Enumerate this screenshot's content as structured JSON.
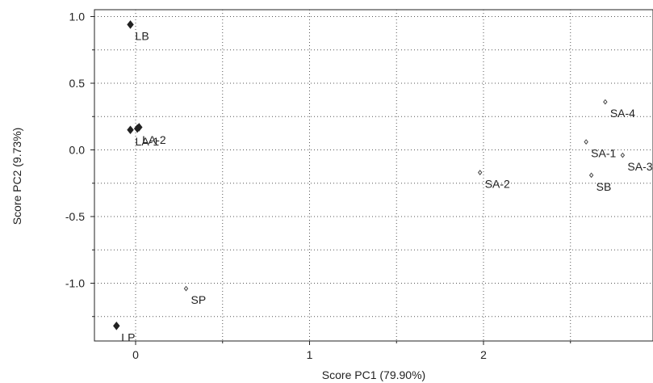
{
  "chart_data": {
    "type": "scatter",
    "title": "",
    "xlabel": "Score PC1 (79.90%)",
    "ylabel": "Score PC2 (9.73%)",
    "xlim": [
      -0.25,
      2.9
    ],
    "ylim": [
      -1.38,
      1.08
    ],
    "x_ticks": [
      0,
      1,
      2
    ],
    "x_tick_labels": [
      "0",
      "1",
      "2"
    ],
    "x_minor_gridlines": [
      0.5,
      1.5,
      2.5
    ],
    "y_ticks": [
      1.0,
      0.5,
      0.0,
      -0.5,
      -1.0
    ],
    "y_tick_labels": [
      "1.0",
      "0.5",
      "0.0",
      "-0.5",
      "-1.0"
    ],
    "y_minor_gridlines": [
      0.75,
      0.25,
      -0.25,
      -0.75,
      -1.25
    ],
    "grid": true,
    "colors": {
      "filled": "#222222",
      "open": "#444444",
      "grid": "#555555"
    },
    "series": [
      {
        "marker": "filled-diamond",
        "points": [
          {
            "label": "LB",
            "x": -0.03,
            "y": 0.94
          },
          {
            "label": "LA-1",
            "x": -0.03,
            "y": 0.15
          },
          {
            "label": "LA-2",
            "x": 0.01,
            "y": 0.16
          },
          {
            "label": "",
            "x": 0.02,
            "y": 0.17
          },
          {
            "label": "LP",
            "x": -0.11,
            "y": -1.32
          }
        ]
      },
      {
        "marker": "open-diamond",
        "points": [
          {
            "label": "SP",
            "x": 0.29,
            "y": -1.04
          },
          {
            "label": "SA-2",
            "x": 1.98,
            "y": -0.17
          },
          {
            "label": "SA-1",
            "x": 2.59,
            "y": 0.06
          },
          {
            "label": "SB",
            "x": 2.62,
            "y": -0.19
          },
          {
            "label": "SA-4",
            "x": 2.7,
            "y": 0.36
          },
          {
            "label": "SA-3",
            "x": 2.8,
            "y": -0.04
          }
        ]
      }
    ]
  }
}
